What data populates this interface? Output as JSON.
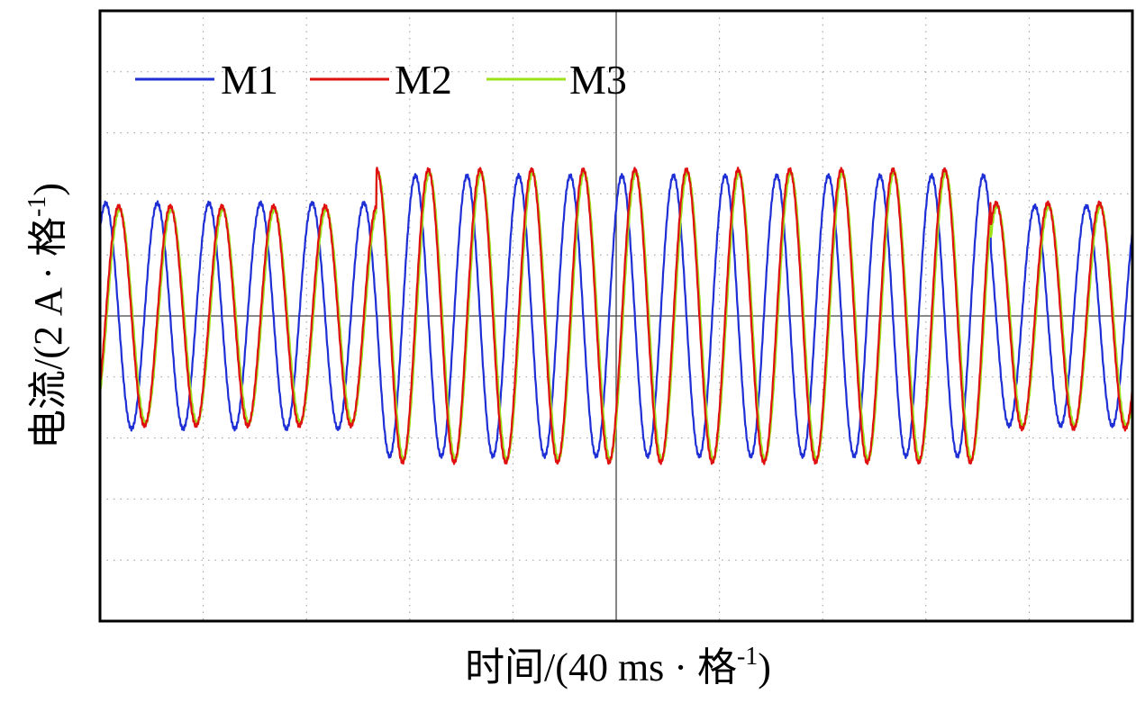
{
  "chart_data": {
    "type": "line",
    "title": "",
    "xlabel": "时间/(40 ms · 格⁻¹)",
    "ylabel": "电流/(2 A · 格⁻¹)",
    "x_unit": "ms",
    "x_per_division_ms": 40,
    "y_per_division_A": 2,
    "xlim": [
      0,
      400
    ],
    "ylim": [
      -10,
      10
    ],
    "grid": true,
    "legend_position": "top-left",
    "series": [
      {
        "name": "M1",
        "color": "#1f2fd6",
        "segments": [
          {
            "t_start": 0,
            "t_end": 107,
            "amplitude": 3.7,
            "frequency_hz": 50,
            "phase_deg": 50
          },
          {
            "t_start": 107,
            "t_end": 345,
            "amplitude": 4.6,
            "frequency_hz": 50,
            "phase_deg": 50
          },
          {
            "t_start": 345,
            "t_end": 400,
            "amplitude": 3.6,
            "frequency_hz": 50,
            "phase_deg": 50
          }
        ]
      },
      {
        "name": "M2",
        "color": "#e01010",
        "segments": [
          {
            "t_start": 0,
            "t_end": 107,
            "amplitude": 3.6,
            "frequency_hz": 50,
            "phase_deg": -40
          },
          {
            "t_start": 107,
            "t_end": 345,
            "amplitude": 4.8,
            "frequency_hz": 50,
            "phase_deg": -40
          },
          {
            "t_start": 345,
            "t_end": 400,
            "amplitude": 3.7,
            "frequency_hz": 50,
            "phase_deg": -40
          }
        ]
      },
      {
        "name": "M3",
        "color": "#9be21a",
        "segments": [
          {
            "t_start": 0,
            "t_end": 107,
            "amplitude": 3.5,
            "frequency_hz": 50,
            "phase_deg": -48
          },
          {
            "t_start": 107,
            "t_end": 345,
            "amplitude": 4.7,
            "frequency_hz": 50,
            "phase_deg": -48
          },
          {
            "t_start": 345,
            "t_end": 400,
            "amplitude": 3.6,
            "frequency_hz": 50,
            "phase_deg": -48
          }
        ]
      }
    ]
  },
  "labels": {
    "xlabel_main": "时间/(40 ms · 格",
    "xlabel_sup": "-1",
    "xlabel_close": ")",
    "ylabel_main": "电流/(2 A · 格",
    "ylabel_sup": "-1",
    "ylabel_close": ")"
  }
}
